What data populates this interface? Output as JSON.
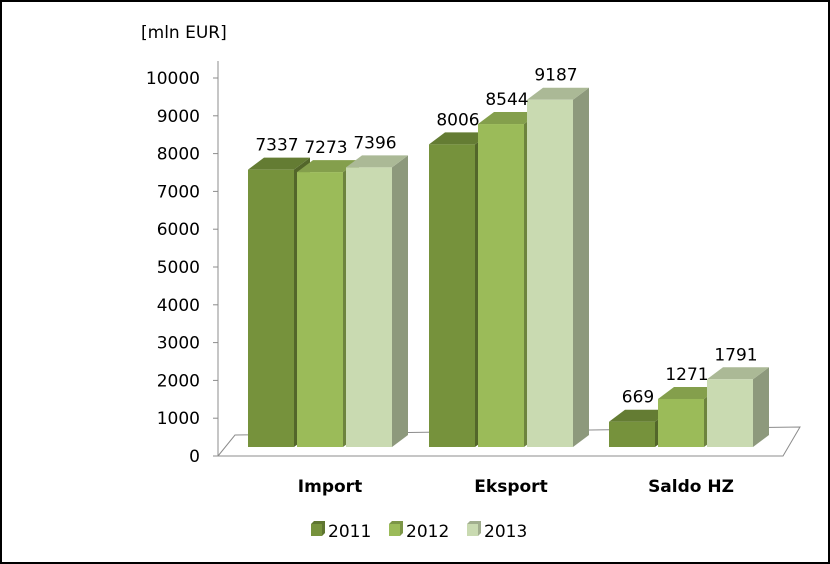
{
  "chart_data": {
    "type": "bar",
    "ylabel": "[mln EUR]",
    "ylim": [
      0,
      10000
    ],
    "yticks": [
      "0",
      "1000",
      "2000",
      "3000",
      "4000",
      "5000",
      "6000",
      "7000",
      "8000",
      "9000",
      "10000"
    ],
    "categories": [
      "Import",
      "Eksport",
      "Saldo HZ"
    ],
    "series": [
      {
        "name": "2011",
        "values": [
          7337,
          8006,
          669
        ],
        "color": "#76923c"
      },
      {
        "name": "2012",
        "values": [
          7273,
          8544,
          1271
        ],
        "color": "#9bbb59"
      },
      {
        "name": "2013",
        "values": [
          7396,
          9187,
          1791
        ],
        "color": "#c9dab1"
      }
    ],
    "legend_position": "bottom",
    "grid": false,
    "style": "3d-clustered-column"
  }
}
